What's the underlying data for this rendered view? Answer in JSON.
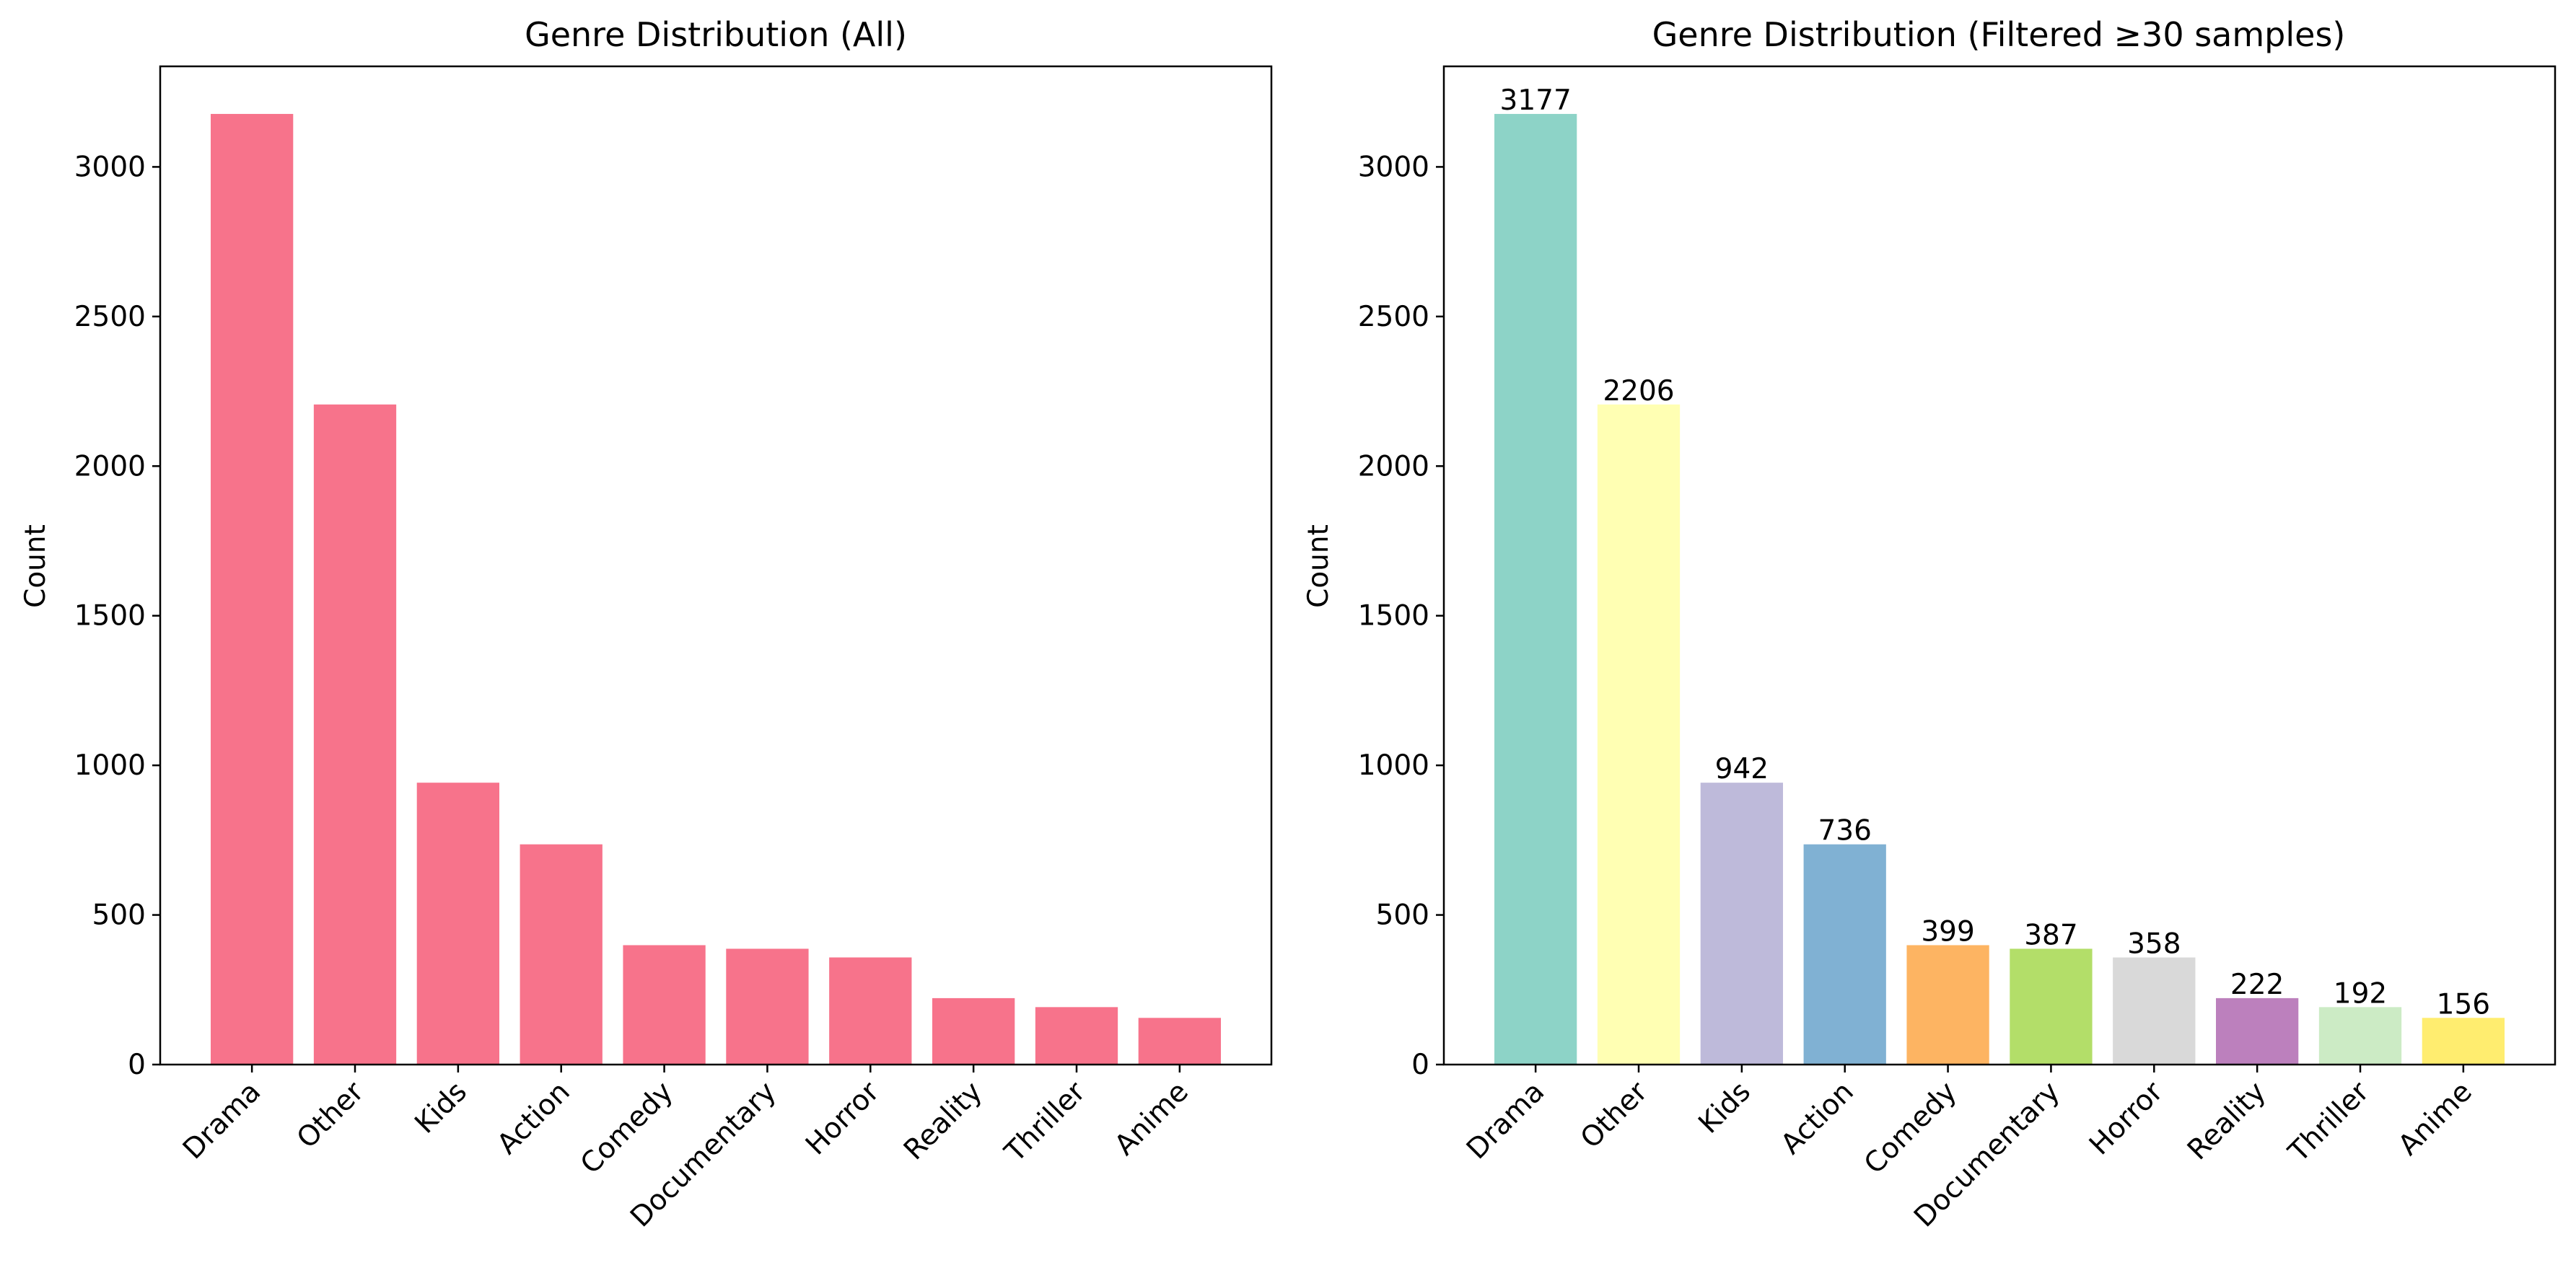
{
  "chart_data": [
    {
      "type": "bar",
      "title": "Genre Distribution (All)",
      "xlabel": "",
      "ylabel": "Count",
      "categories": [
        "Drama",
        "Other",
        "Kids",
        "Action",
        "Comedy",
        "Documentary",
        "Horror",
        "Reality",
        "Thriller",
        "Anime"
      ],
      "values": [
        3177,
        2206,
        942,
        736,
        399,
        387,
        358,
        222,
        192,
        156
      ],
      "ylim": [
        0,
        3336
      ],
      "yticks": [
        0,
        500,
        1000,
        1500,
        2000,
        2500,
        3000
      ],
      "grid": false,
      "legend": "none",
      "show_value_labels": false,
      "colors": [
        "#f7738b"
      ]
    },
    {
      "type": "bar",
      "title": "Genre Distribution (Filtered ≥30 samples)",
      "xlabel": "",
      "ylabel": "Count",
      "categories": [
        "Drama",
        "Other",
        "Kids",
        "Action",
        "Comedy",
        "Documentary",
        "Horror",
        "Reality",
        "Thriller",
        "Anime"
      ],
      "values": [
        3177,
        2206,
        942,
        736,
        399,
        387,
        358,
        222,
        192,
        156
      ],
      "ylim": [
        0,
        3336
      ],
      "yticks": [
        0,
        500,
        1000,
        1500,
        2000,
        2500,
        3000
      ],
      "grid": false,
      "legend": "none",
      "show_value_labels": true,
      "colors": [
        "#8dd3c7",
        "#ffffb3",
        "#bebada",
        "#80b1d3",
        "#fdb462",
        "#b3de69",
        "#d9d9d9",
        "#bc80bd",
        "#ccebc5",
        "#ffed6f"
      ]
    }
  ]
}
